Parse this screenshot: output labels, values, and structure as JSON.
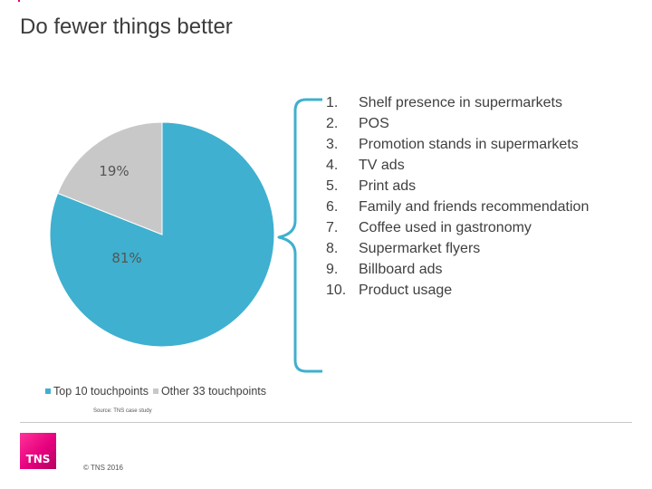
{
  "title": "Do fewer things better",
  "chart_data": {
    "type": "pie",
    "labels": [
      "Top 10 touchpoints",
      "Other 33 touchpoints"
    ],
    "values": [
      81,
      19
    ],
    "value_labels": [
      "81%",
      "19%"
    ],
    "colors": [
      "#3fb0cf",
      "#c8c8c8"
    ],
    "legend_position": "bottom-left"
  },
  "touchpoints": [
    {
      "num": "1.",
      "label": "Shelf presence in supermarkets"
    },
    {
      "num": "2.",
      "label": "POS"
    },
    {
      "num": "3.",
      "label": "Promotion stands in supermarkets"
    },
    {
      "num": "4.",
      "label": "TV ads"
    },
    {
      "num": "5.",
      "label": "Print ads"
    },
    {
      "num": "6.",
      "label": "Family and friends recommendation"
    },
    {
      "num": "7.",
      "label": "Coffee used in gastronomy"
    },
    {
      "num": "8.",
      "label": "Supermarket flyers"
    },
    {
      "num": "9.",
      "label": "Billboard ads"
    },
    {
      "num": "10.",
      "label": "Product usage"
    }
  ],
  "source": "Source: TNS case study",
  "logo_text": "TNS",
  "copyright": "© TNS 2016",
  "bracket_color": "#3fb0cf"
}
